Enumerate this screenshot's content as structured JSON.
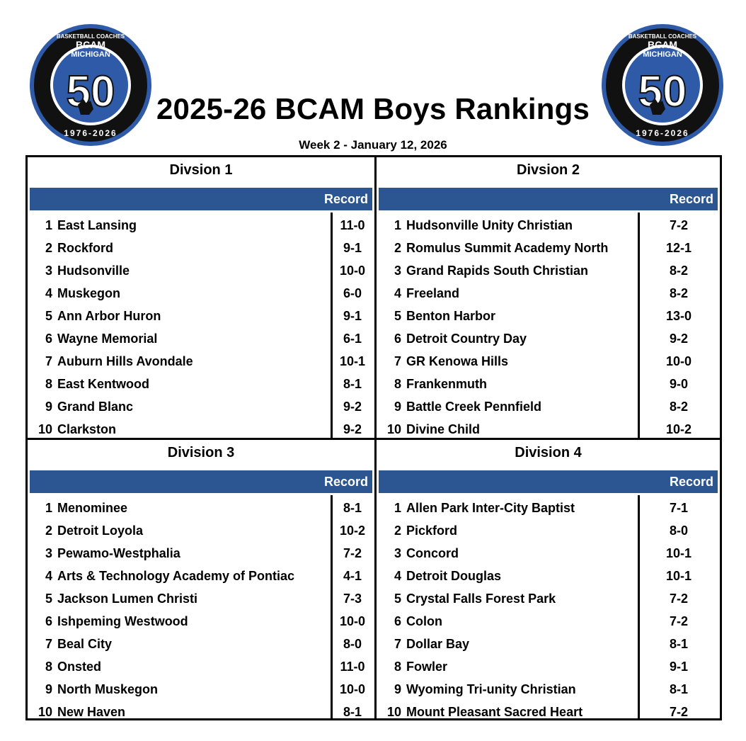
{
  "header": {
    "title": "2025-26 BCAM Boys Rankings",
    "subtitle": "Week 2 - January 12, 2026"
  },
  "logo": {
    "top_text": "BASKETBALL COACHES",
    "org": "BCAM",
    "state": "MICHIGAN",
    "number": "50",
    "years": "1976-2026",
    "colors": {
      "ring": "#111111",
      "blue": "#2e5aa8",
      "accent": "#ffffff"
    }
  },
  "colors": {
    "bar": "#2b5691",
    "border": "#000000"
  },
  "record_label": "Record",
  "divisions": [
    {
      "name": "Divsion 1",
      "teams": [
        {
          "rank": "1",
          "team": "East Lansing",
          "record": "11-0"
        },
        {
          "rank": "2",
          "team": "Rockford",
          "record": "9-1"
        },
        {
          "rank": "3",
          "team": "Hudsonville",
          "record": "10-0"
        },
        {
          "rank": "4",
          "team": "Muskegon",
          "record": "6-0"
        },
        {
          "rank": "5",
          "team": "Ann Arbor Huron",
          "record": "9-1"
        },
        {
          "rank": "6",
          "team": "Wayne Memorial",
          "record": "6-1"
        },
        {
          "rank": "7",
          "team": "Auburn Hills Avondale",
          "record": "10-1"
        },
        {
          "rank": "8",
          "team": "East Kentwood",
          "record": "8-1"
        },
        {
          "rank": "9",
          "team": "Grand Blanc",
          "record": "9-2"
        },
        {
          "rank": "10",
          "team": "Clarkston",
          "record": "9-2"
        }
      ]
    },
    {
      "name": "Divsion 2",
      "teams": [
        {
          "rank": "1",
          "team": "Hudsonville Unity Christian",
          "record": "7-2"
        },
        {
          "rank": "2",
          "team": "Romulus Summit Academy North",
          "record": "12-1"
        },
        {
          "rank": "3",
          "team": "Grand Rapids South Christian",
          "record": "8-2"
        },
        {
          "rank": "4",
          "team": "Freeland",
          "record": "8-2"
        },
        {
          "rank": "5",
          "team": "Benton Harbor",
          "record": "13-0"
        },
        {
          "rank": "6",
          "team": "Detroit Country Day",
          "record": "9-2"
        },
        {
          "rank": "7",
          "team": "GR Kenowa Hills",
          "record": "10-0"
        },
        {
          "rank": "8",
          "team": "Frankenmuth",
          "record": "9-0"
        },
        {
          "rank": "9",
          "team": "Battle Creek Pennfield",
          "record": "8-2"
        },
        {
          "rank": "10",
          "team": "Divine Child",
          "record": "10-2"
        }
      ]
    },
    {
      "name": "Division 3",
      "teams": [
        {
          "rank": "1",
          "team": "Menominee",
          "record": "8-1"
        },
        {
          "rank": "2",
          "team": "Detroit Loyola",
          "record": "10-2"
        },
        {
          "rank": "3",
          "team": "Pewamo-Westphalia",
          "record": "7-2"
        },
        {
          "rank": "4",
          "team": "Arts & Technology Academy of Pontiac",
          "record": "4-1"
        },
        {
          "rank": "5",
          "team": "Jackson Lumen Christi",
          "record": "7-3"
        },
        {
          "rank": "6",
          "team": "Ishpeming Westwood",
          "record": "10-0"
        },
        {
          "rank": "7",
          "team": "Beal City",
          "record": "8-0"
        },
        {
          "rank": "8",
          "team": "Onsted",
          "record": "11-0"
        },
        {
          "rank": "9",
          "team": "North Muskegon",
          "record": "10-0"
        },
        {
          "rank": "10",
          "team": "New Haven",
          "record": "8-1"
        }
      ]
    },
    {
      "name": "Division 4",
      "teams": [
        {
          "rank": "1",
          "team": "Allen Park Inter-City Baptist",
          "record": "7-1"
        },
        {
          "rank": "2",
          "team": "Pickford",
          "record": "8-0"
        },
        {
          "rank": "3",
          "team": "Concord",
          "record": "10-1"
        },
        {
          "rank": "4",
          "team": "Detroit Douglas",
          "record": "10-1"
        },
        {
          "rank": "5",
          "team": "Crystal Falls Forest Park",
          "record": "7-2"
        },
        {
          "rank": "6",
          "team": "Colon",
          "record": "7-2"
        },
        {
          "rank": "7",
          "team": "Dollar Bay",
          "record": "8-1"
        },
        {
          "rank": "8",
          "team": "Fowler",
          "record": "9-1"
        },
        {
          "rank": "9",
          "team": "Wyoming Tri-unity Christian",
          "record": "8-1"
        },
        {
          "rank": "10",
          "team": "Mount Pleasant Sacred Heart",
          "record": "7-2"
        }
      ]
    }
  ]
}
